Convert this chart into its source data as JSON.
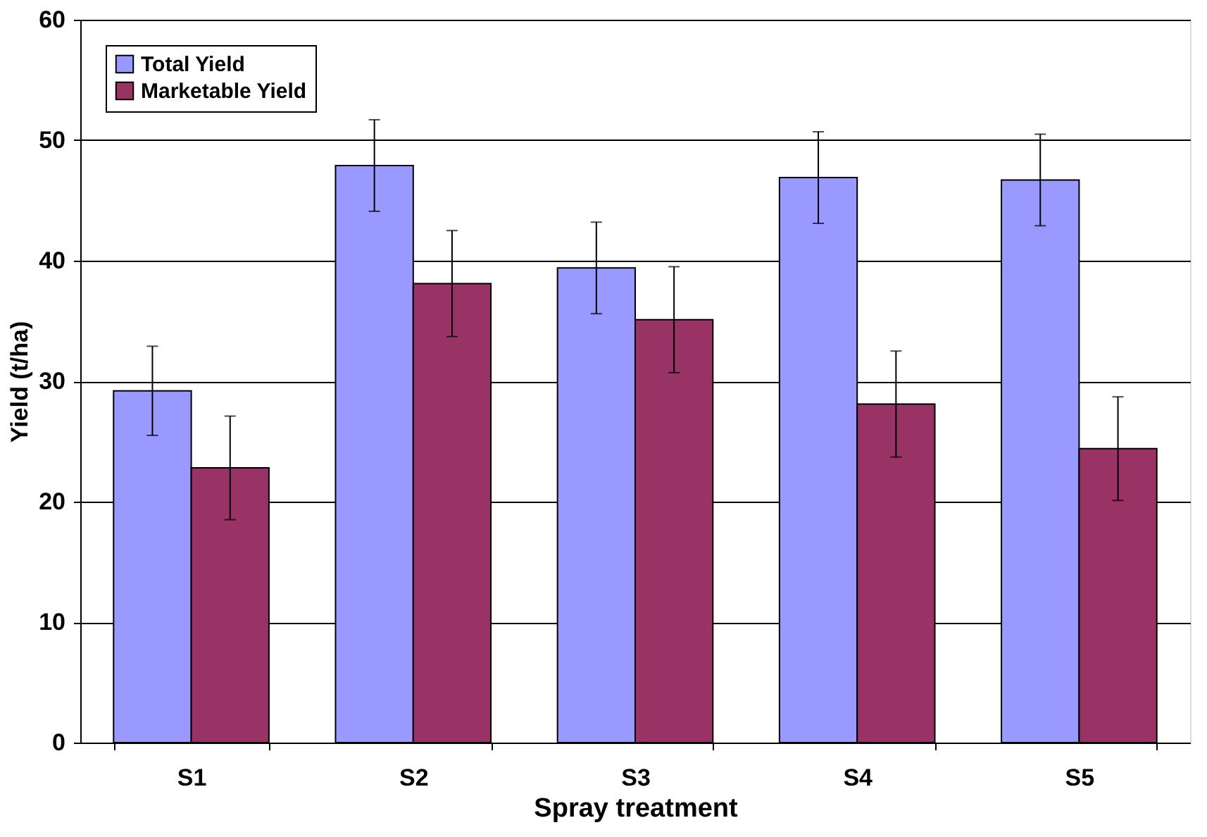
{
  "chart_data": {
    "type": "bar",
    "xlabel": "Spray treatment",
    "ylabel": "Yield (t/ha)",
    "categories": [
      "S1",
      "S2",
      "S3",
      "S4",
      "S5"
    ],
    "series": [
      {
        "name": "Total Yield",
        "color": "#9999ff",
        "values": [
          29.2,
          47.9,
          39.4,
          46.9,
          46.7
        ],
        "errors": [
          3.7,
          3.8,
          3.8,
          3.8,
          3.8
        ]
      },
      {
        "name": "Marketable Yield",
        "color": "#993366",
        "values": [
          22.8,
          38.1,
          35.1,
          28.1,
          24.4
        ],
        "errors": [
          4.3,
          4.4,
          4.4,
          4.4,
          4.3
        ]
      }
    ],
    "ylim": [
      0,
      60
    ],
    "yticks": [
      0,
      10,
      20,
      30,
      40,
      50,
      60
    ],
    "grid": "y",
    "legend": "top left"
  }
}
